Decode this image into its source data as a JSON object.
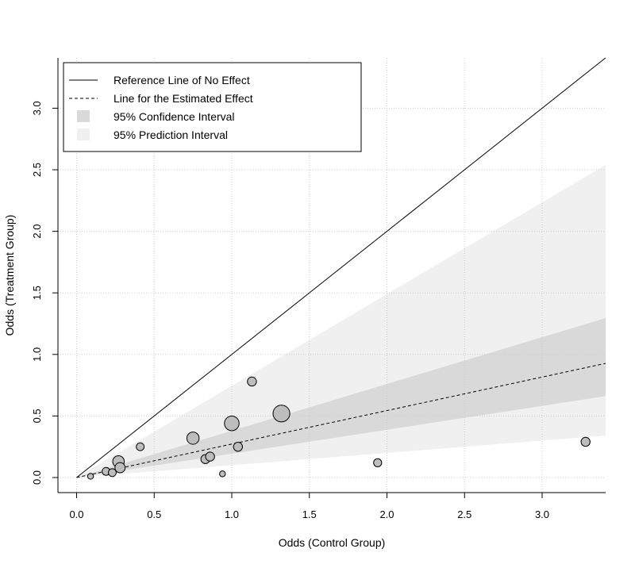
{
  "chart_data": {
    "type": "scatter",
    "title": "",
    "xlabel": "Odds (Control Group)",
    "ylabel": "Odds (Treatment Group)",
    "xlim": [
      -0.12,
      3.42
    ],
    "ylim": [
      -0.12,
      3.42
    ],
    "xticks": [
      0.0,
      0.5,
      1.0,
      1.5,
      2.0,
      2.5,
      3.0
    ],
    "yticks": [
      0.0,
      0.5,
      1.0,
      1.5,
      2.0,
      2.5,
      3.0
    ],
    "xtick_labels": [
      "0.0",
      "0.5",
      "1.0",
      "1.5",
      "2.0",
      "2.5",
      "3.0"
    ],
    "ytick_labels": [
      "0.0",
      "0.5",
      "1.0",
      "1.5",
      "2.0",
      "2.5",
      "3.0"
    ],
    "grid": true,
    "reference_line_slope": 1.0,
    "estimated_effect_slope": 0.272,
    "confidence_interval_slopes": [
      0.194,
      0.38
    ],
    "prediction_interval_slopes": [
      0.1,
      0.745
    ],
    "points": [
      {
        "x": 0.09,
        "y": 0.01,
        "weight": 0.6
      },
      {
        "x": 0.19,
        "y": 0.05,
        "weight": 1.8
      },
      {
        "x": 0.23,
        "y": 0.04,
        "weight": 1.8
      },
      {
        "x": 0.27,
        "y": 0.13,
        "weight": 5.8
      },
      {
        "x": 0.28,
        "y": 0.08,
        "weight": 4.0
      },
      {
        "x": 0.41,
        "y": 0.25,
        "weight": 1.8
      },
      {
        "x": 0.75,
        "y": 0.32,
        "weight": 6.8
      },
      {
        "x": 0.83,
        "y": 0.15,
        "weight": 2.8
      },
      {
        "x": 0.86,
        "y": 0.17,
        "weight": 2.8
      },
      {
        "x": 0.94,
        "y": 0.03,
        "weight": 0.6
      },
      {
        "x": 1.0,
        "y": 0.44,
        "weight": 10.8
      },
      {
        "x": 1.04,
        "y": 0.25,
        "weight": 2.8
      },
      {
        "x": 1.13,
        "y": 0.78,
        "weight": 2.8
      },
      {
        "x": 1.32,
        "y": 0.52,
        "weight": 15.2
      },
      {
        "x": 1.94,
        "y": 0.12,
        "weight": 2.0
      },
      {
        "x": 3.28,
        "y": 0.29,
        "weight": 2.8
      }
    ],
    "legend": {
      "position": "top-left",
      "entries": [
        {
          "label": "Reference Line of No Effect",
          "symbol": "solid-line"
        },
        {
          "label": "Line for the Estimated Effect",
          "symbol": "dashed-line"
        },
        {
          "label": "95% Confidence Interval",
          "symbol": "box",
          "color": "#d9d9d9"
        },
        {
          "label": "95% Prediction Interval",
          "symbol": "box",
          "color": "#f0f0f0"
        }
      ]
    },
    "colors": {
      "confidence_band": "#d9d9d9",
      "prediction_band": "#f0f0f0",
      "point_fill": "#bdbdbd",
      "grid": "#cccccc"
    }
  }
}
